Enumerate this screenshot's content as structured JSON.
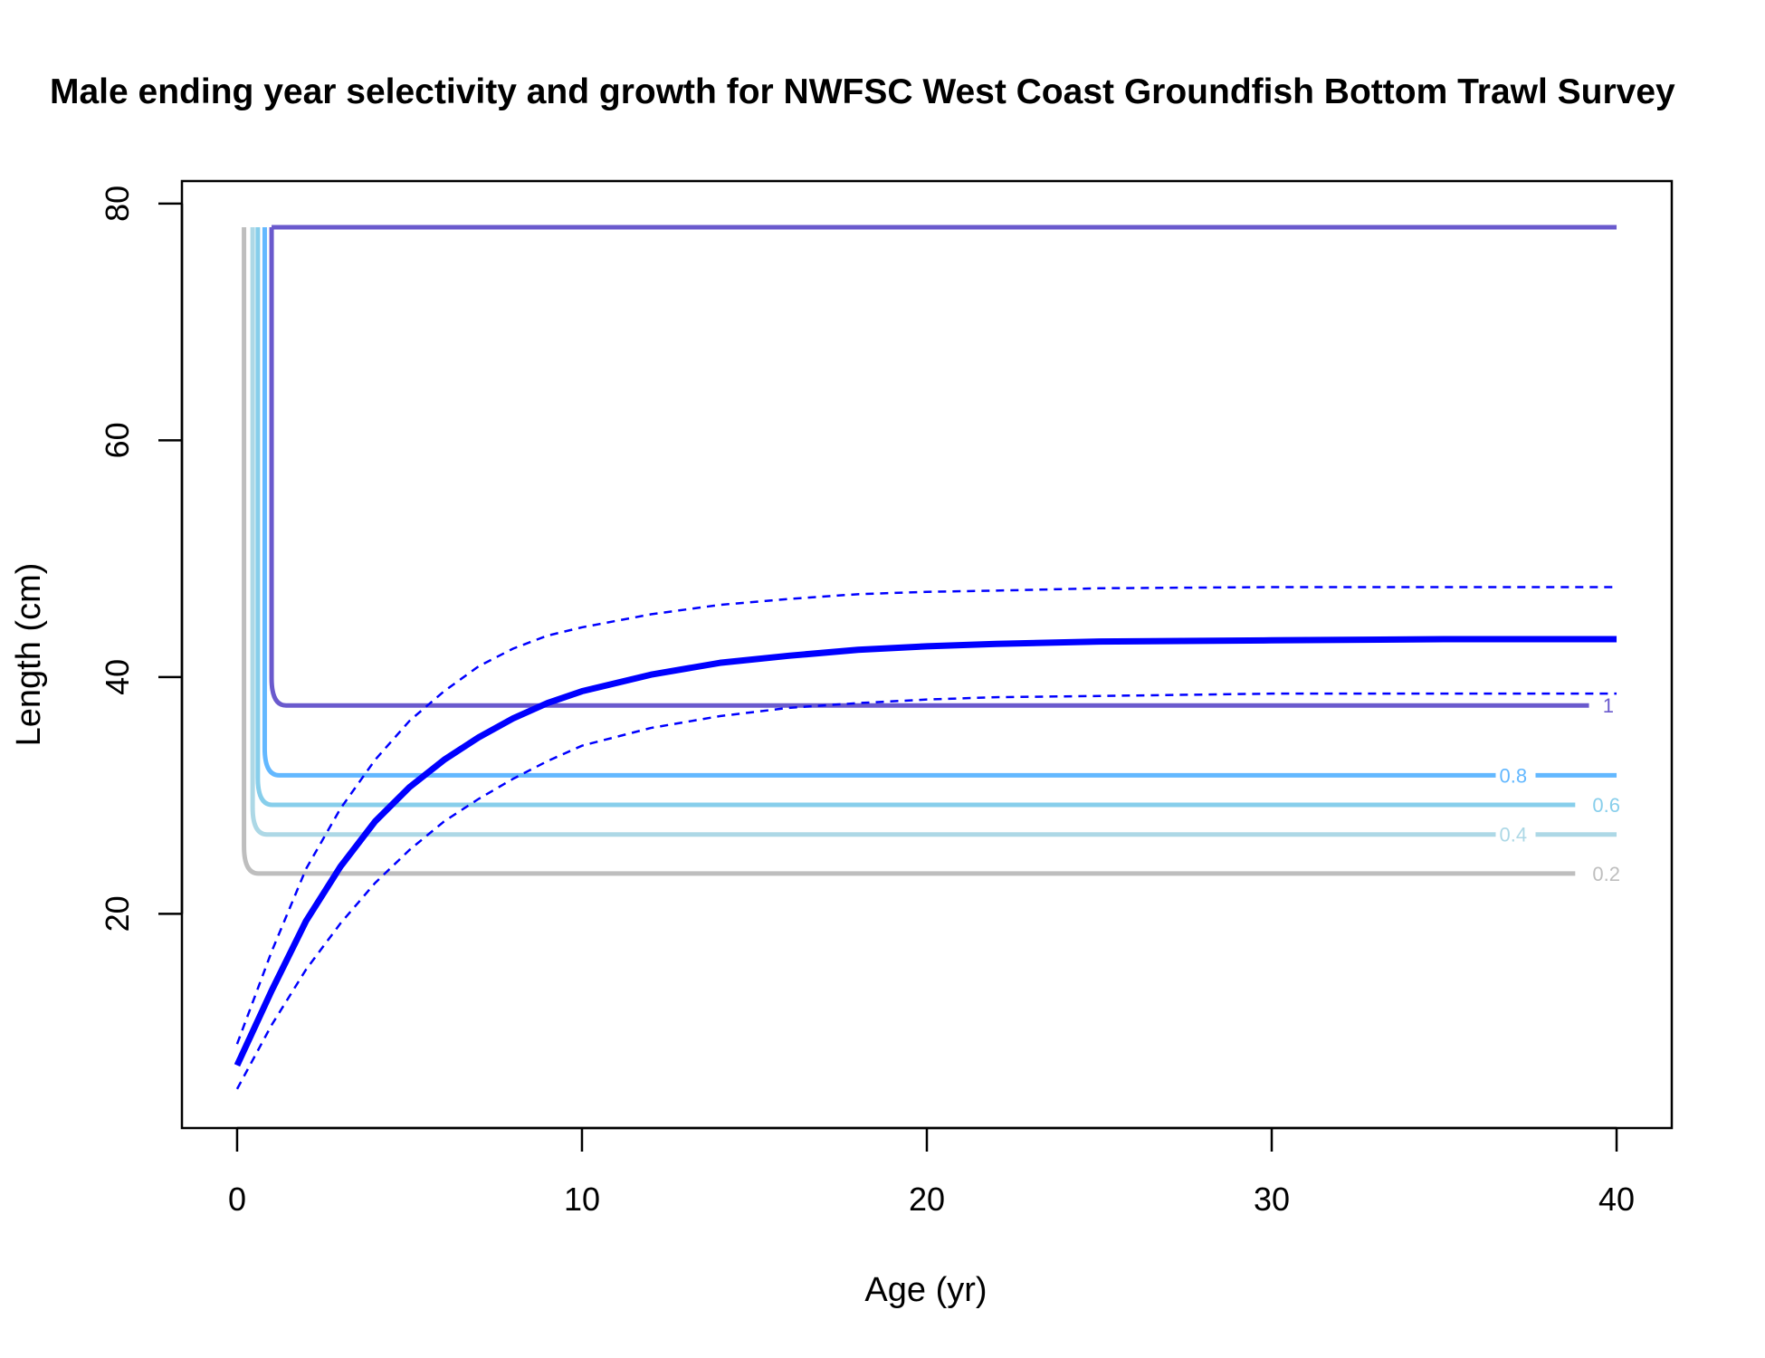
{
  "chart_data": {
    "type": "line",
    "title": "Male ending year selectivity and growth for NWFSC West Coast Groundfish Bottom Trawl Survey",
    "xlabel": "Age (yr)",
    "ylabel": "Length (cm)",
    "xlim": [
      -1.6,
      41.6
    ],
    "ylim": [
      1.9,
      81.9
    ],
    "x_ticks": [
      0,
      10,
      20,
      30,
      40
    ],
    "y_ticks": [
      20,
      40,
      60,
      80
    ],
    "grid": false,
    "growth": {
      "color": "#0000ff",
      "ages": [
        0,
        1,
        2,
        3,
        4,
        5,
        6,
        7,
        8,
        9,
        10,
        12,
        14,
        16,
        18,
        20,
        22,
        25,
        30,
        35,
        40
      ],
      "mean": [
        7.2,
        13.5,
        19.4,
        24.0,
        27.8,
        30.7,
        33.0,
        34.9,
        36.5,
        37.8,
        38.8,
        40.2,
        41.2,
        41.8,
        42.3,
        42.6,
        42.8,
        43.0,
        43.1,
        43.2,
        43.2
      ],
      "upper": [
        9.0,
        16.8,
        23.8,
        28.9,
        33.0,
        36.3,
        38.8,
        40.9,
        42.4,
        43.5,
        44.2,
        45.3,
        46.1,
        46.6,
        47.0,
        47.2,
        47.3,
        47.5,
        47.6,
        47.6,
        47.6
      ],
      "lower": [
        5.2,
        10.6,
        15.3,
        19.2,
        22.6,
        25.4,
        27.8,
        29.7,
        31.4,
        32.9,
        34.2,
        35.7,
        36.7,
        37.4,
        37.8,
        38.1,
        38.3,
        38.4,
        38.6,
        38.6,
        38.6
      ]
    },
    "selectivity_contours": [
      {
        "level": "0.2",
        "color": "#bebebe",
        "x_vertical": 0.2,
        "y_floor": 23.4,
        "x_end": 38.8,
        "label_x": 39.3
      },
      {
        "level": "0.4",
        "color": "#add8e6",
        "x_vertical": 0.45,
        "y_floor": 26.7,
        "x_end": 40.0,
        "label_x": 36.6
      },
      {
        "level": "0.6",
        "color": "#87ceeb",
        "x_vertical": 0.6,
        "y_floor": 29.2,
        "x_end": 38.8,
        "label_x": 39.3
      },
      {
        "level": "0.8",
        "color": "#63b8ff",
        "x_vertical": 0.8,
        "y_floor": 31.7,
        "x_end": 40.0,
        "label_x": 36.6
      },
      {
        "level": "1",
        "color": "#6a5acd",
        "x_vertical": 1.0,
        "y_floor": 37.6,
        "x_end": 39.2,
        "label_x": 39.6
      }
    ],
    "selectivity_top": 78.0
  }
}
